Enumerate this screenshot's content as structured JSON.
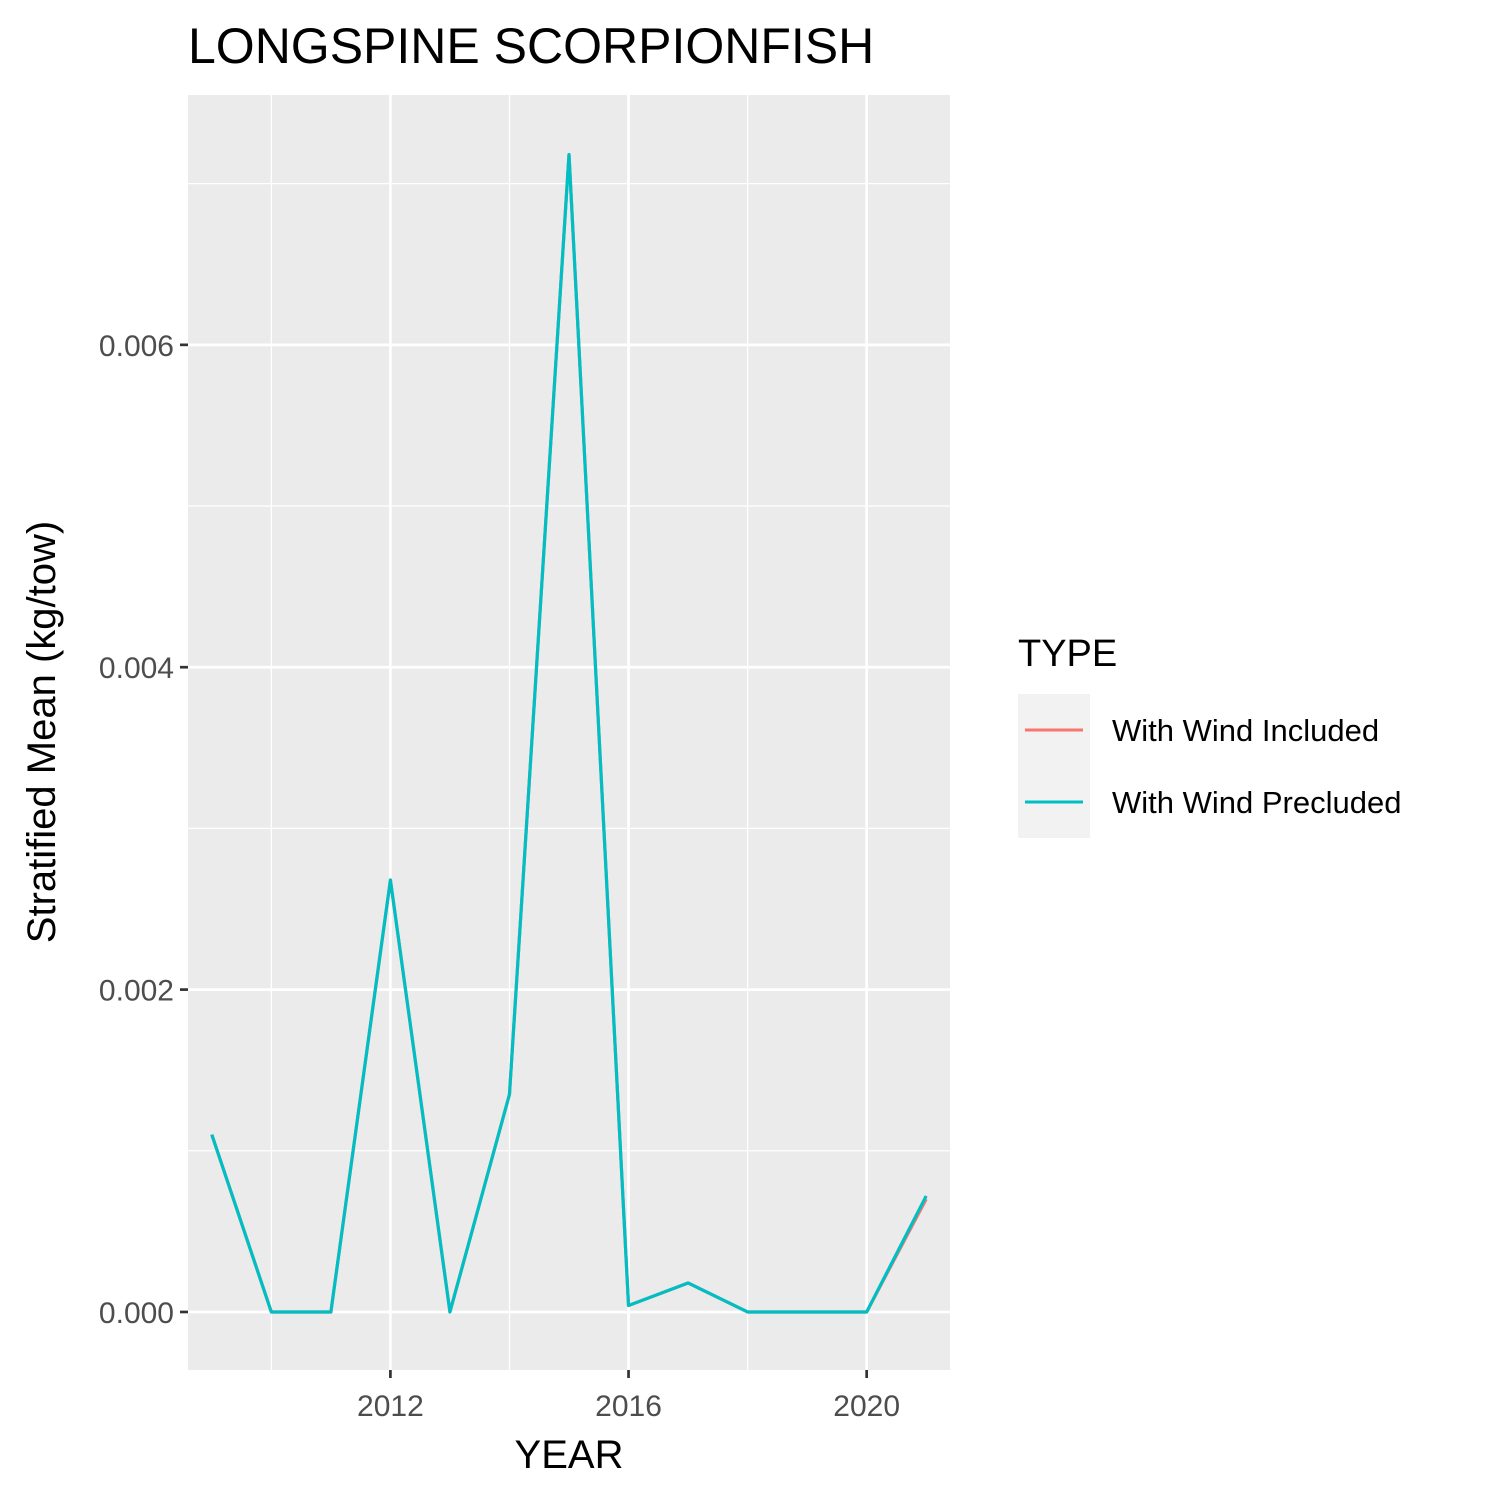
{
  "chart_data": {
    "type": "line",
    "title": "LONGSPINE SCORPIONFISH",
    "xlabel": "YEAR",
    "ylabel": "Stratified Mean (kg/tow)",
    "xlim": [
      2008.6,
      2021.4
    ],
    "ylim": [
      -0.00036,
      0.00755
    ],
    "x_ticks": [
      2012,
      2016,
      2020
    ],
    "x_tick_labels": [
      "2012",
      "2016",
      "2020"
    ],
    "y_ticks": [
      0,
      0.002,
      0.004,
      0.006
    ],
    "y_tick_labels": [
      "0.000",
      "0.002",
      "0.004",
      "0.006"
    ],
    "grid": true,
    "legend": {
      "title": "TYPE",
      "position": "right"
    },
    "x": [
      2009,
      2010,
      2011,
      2012,
      2013,
      2014,
      2015,
      2016,
      2017,
      2018,
      2019,
      2020,
      2021
    ],
    "series": [
      {
        "name": "With Wind Included",
        "color": "#F8766D",
        "values": [
          0.0011,
          0.0,
          0.0,
          0.00268,
          0.0,
          0.00135,
          0.00718,
          4e-05,
          0.00018,
          0.0,
          0.0,
          0.0,
          0.0007
        ]
      },
      {
        "name": "With Wind Precluded",
        "color": "#00BFC4",
        "values": [
          0.0011,
          0.0,
          0.0,
          0.00268,
          0.0,
          0.00135,
          0.00718,
          4e-05,
          0.00018,
          0.0,
          0.0,
          0.0,
          0.00072
        ]
      }
    ]
  }
}
